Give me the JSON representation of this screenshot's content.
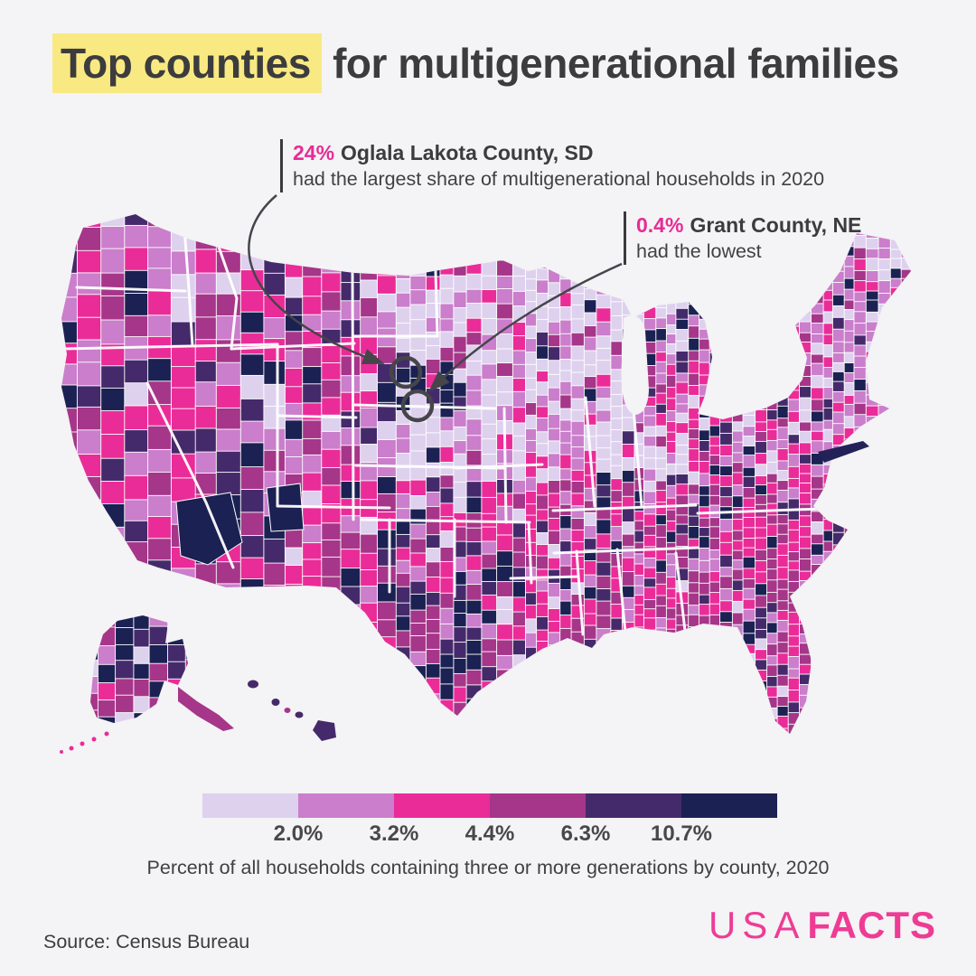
{
  "title": {
    "highlight": "Top counties",
    "rest": " for multigenerational families"
  },
  "annotations": [
    {
      "value": "24%",
      "name": "Oglala Lakota County, SD",
      "description": "had the largest share of multigenerational households in 2020"
    },
    {
      "value": "0.4%",
      "name": "Grant County, NE",
      "description": "had the lowest"
    }
  ],
  "legend": {
    "tick_labels": [
      "2.0%",
      "3.2%",
      "4.4%",
      "6.3%",
      "10.7%"
    ],
    "colors": [
      "#ded1ee",
      "#ca7ecb",
      "#ea2c98",
      "#a63689",
      "#452a6b",
      "#1b2152"
    ]
  },
  "caption": "Percent of all households containing three or more generations by county, 2020",
  "source": "Source: Census Bureau",
  "logo": {
    "part1": "USA",
    "part2": "FACTS"
  },
  "colors": {
    "accent_pink": "#e62c96",
    "logo_pink": "#ee3c95",
    "highlight_yellow": "#f9e982",
    "text_dark": "#3c3c3e",
    "background": "#f4f3f5",
    "connector": "#45454a"
  },
  "chart_data": {
    "type": "heatmap",
    "subtype": "choropleth-us-county-map",
    "title": "Top counties for multigenerational families",
    "metric": "Percent of all households containing three or more generations by county, 2020",
    "year": "2020",
    "legend_breaks_percent": [
      2.0,
      3.2,
      4.4,
      6.3,
      10.7
    ],
    "legend_colors": [
      "#ded1ee",
      "#ca7ecb",
      "#ea2c98",
      "#a63689",
      "#452a6b",
      "#1b2152"
    ],
    "highlights": [
      {
        "county": "Oglala Lakota County, SD",
        "value_percent": 24,
        "note": "largest share of multigenerational households in 2020"
      },
      {
        "county": "Grant County, NE",
        "value_percent": 0.4,
        "note": "lowest"
      }
    ],
    "regions_shown": [
      "contiguous United States",
      "Alaska",
      "Hawaii"
    ],
    "legend_position": "bottom-center"
  }
}
